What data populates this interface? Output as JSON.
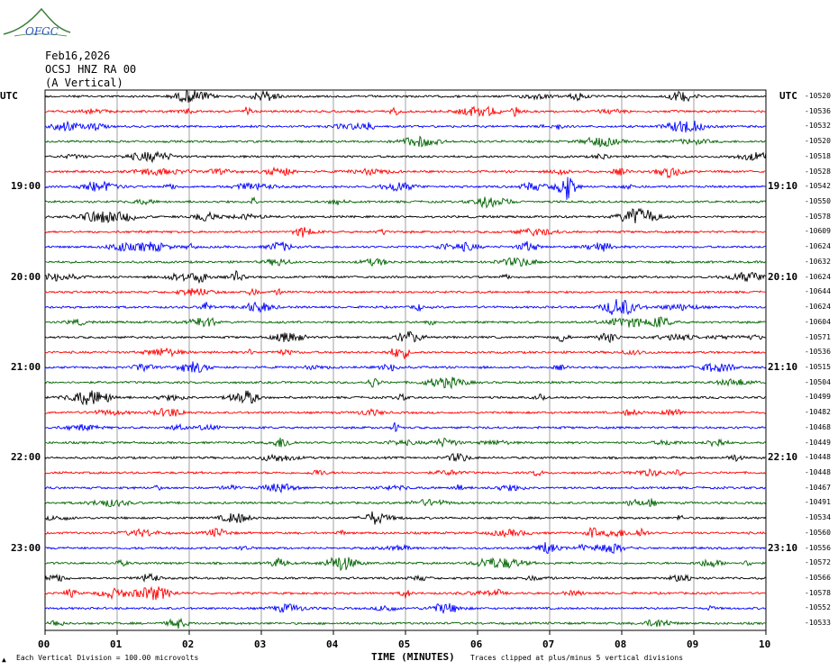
{
  "logo": {
    "text": "OFGC",
    "colors": {
      "arc": "#3c7d3c",
      "text": "#2a55b5"
    }
  },
  "header": {
    "date": "Feb16,2026",
    "station": "OCSJ HNZ RA 00",
    "component": "(A Vertical)"
  },
  "axis": {
    "left_utc_label": "UTC",
    "right_utc_label": "UTC",
    "left_times": [
      "19:00",
      "20:00",
      "21:00",
      "22:00",
      "23:00"
    ],
    "right_times": [
      "19:10",
      "20:10",
      "21:10",
      "22:10",
      "23:10"
    ],
    "x_ticks": [
      "00",
      "01",
      "02",
      "03",
      "04",
      "05",
      "06",
      "07",
      "08",
      "09",
      "10"
    ],
    "xlabel": "TIME (MINUTES)"
  },
  "footer": {
    "scale_note": "Each Vertical Division =  100.00 microvolts",
    "clip_note": "Traces clipped at plus/minus 5 vertical divisions"
  },
  "chart_data": {
    "type": "line",
    "title": "",
    "xlabel": "TIME (MINUTES)",
    "ylabel": "",
    "xlim": [
      0,
      10
    ],
    "grid": true,
    "trace_colors": [
      "#000000",
      "#ff0000",
      "#0000ff",
      "#006400"
    ],
    "trace_offsets": [
      "-10520",
      "-10536",
      "-10532",
      "-10520",
      "-10518",
      "-10528",
      "-10542",
      "-10550",
      "-10578",
      "-10609",
      "-10624",
      "-10632",
      "-10624",
      "-10644",
      "-10624",
      "-10604",
      "-10571",
      "-10536",
      "-10515",
      "-10504",
      "-10499",
      "-10482",
      "-10468",
      "-10449",
      "-10448",
      "-10448",
      "-10467",
      "-10491",
      "-10534",
      "-10560",
      "-10556",
      "-10572",
      "-10566",
      "-10578",
      "-10552",
      "-10533"
    ],
    "series": []
  }
}
